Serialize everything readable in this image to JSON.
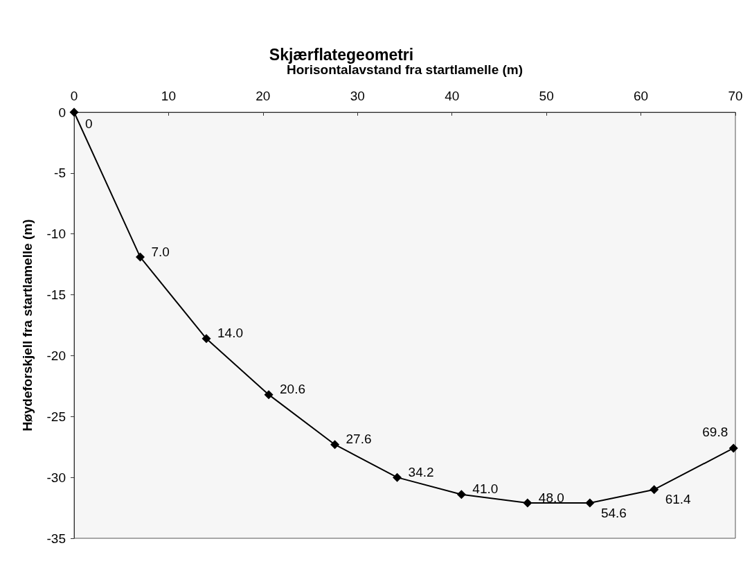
{
  "chart_data": {
    "type": "line",
    "title": "Skjærflategeometri",
    "xlabel": "Horisontalavstand fra startlamelle (m)",
    "ylabel": "Høydeforskjell fra startlamelle (m)",
    "x": [
      0,
      7.0,
      14.0,
      20.6,
      27.6,
      34.2,
      41.0,
      48.0,
      54.6,
      61.4,
      69.8
    ],
    "series": [
      {
        "color": "#000000",
        "values": [
          0,
          -11.9,
          -18.6,
          -23.2,
          -27.3,
          -30.0,
          -31.4,
          -32.1,
          -32.1,
          -31.0,
          -27.6
        ]
      }
    ],
    "annotations": [
      {
        "text": "0",
        "x": 0,
        "y": 0
      },
      {
        "text": "7.0",
        "x": 7.0,
        "y": -11.9
      },
      {
        "text": "14.0",
        "x": 14.0,
        "y": -18.6
      },
      {
        "text": "20.6",
        "x": 20.6,
        "y": -23.2
      },
      {
        "text": "27.6",
        "x": 27.6,
        "y": -27.3
      },
      {
        "text": "34.2",
        "x": 34.2,
        "y": -30.0
      },
      {
        "text": "41.0",
        "x": 41.0,
        "y": -31.4
      },
      {
        "text": "48.0",
        "x": 48.0,
        "y": -32.1
      },
      {
        "text": "54.6",
        "x": 54.6,
        "y": -32.1
      },
      {
        "text": "61.4",
        "x": 61.4,
        "y": -31.0
      },
      {
        "text": "69.8",
        "x": 69.8,
        "y": -27.6
      }
    ],
    "xlim": [
      0,
      70
    ],
    "xticks": [
      0,
      10,
      20,
      30,
      40,
      50,
      60,
      70
    ],
    "ylim": [
      -35,
      0
    ],
    "yticks": [
      -35,
      -30,
      -25,
      -20,
      -15,
      -10,
      -5,
      0
    ],
    "grid": false,
    "marker": "diamond",
    "line_style": "solid"
  }
}
